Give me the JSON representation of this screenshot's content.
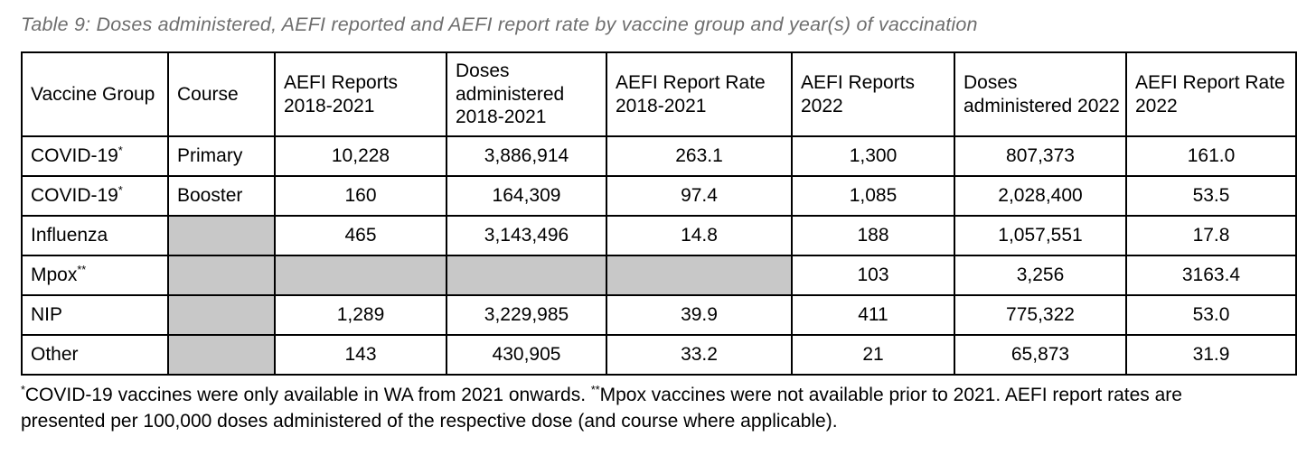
{
  "title": "Table 9: Doses administered, AEFI reported and AEFI report rate by vaccine group and year(s) of vaccination",
  "table": {
    "headers": [
      "Vaccine Group",
      "Course",
      "AEFI Reports 2018-2021",
      "Doses administered 2018-2021",
      "AEFI Report Rate 2018-2021",
      "AEFI Reports 2022",
      "Doses administered 2022",
      "AEFI Report Rate 2022"
    ],
    "rows": [
      {
        "group": "COVID-19",
        "sup": "*",
        "course": "Primary",
        "r1821": "10,228",
        "d1821": "3,886,914",
        "rate1821": "263.1",
        "r22": "1,300",
        "d22": "807,373",
        "rate22": "161.0"
      },
      {
        "group": "COVID-19",
        "sup": "*",
        "course": "Booster",
        "r1821": "160",
        "d1821": "164,309",
        "rate1821": "97.4",
        "r22": "1,085",
        "d22": "2,028,400",
        "rate22": "53.5"
      },
      {
        "group": "Influenza",
        "sup": "",
        "course": "",
        "r1821": "465",
        "d1821": "3,143,496",
        "rate1821": "14.8",
        "r22": "188",
        "d22": "1,057,551",
        "rate22": "17.8"
      },
      {
        "group": "Mpox",
        "sup": "**",
        "course": "",
        "r1821": "",
        "d1821": "",
        "rate1821": "",
        "r22": "103",
        "d22": "3,256",
        "rate22": "3163.4"
      },
      {
        "group": "NIP",
        "sup": "",
        "course": "",
        "r1821": "1,289",
        "d1821": "3,229,985",
        "rate1821": "39.9",
        "r22": "411",
        "d22": "775,322",
        "rate22": "53.0"
      },
      {
        "group": "Other",
        "sup": "",
        "course": "",
        "r1821": "143",
        "d1821": "430,905",
        "rate1821": "33.2",
        "r22": "21",
        "d22": "65,873",
        "rate22": "31.9"
      }
    ],
    "shading_color": "#c8c8c8"
  },
  "footnote": {
    "sup1": "*",
    "text1": "COVID-19 vaccines were only available in WA from 2021 onwards. ",
    "sup2": "**",
    "text2": "Mpox vaccines were not available prior to 2021. AEFI report rates are presented per 100,000 doses administered of the respective dose (and course where applicable)."
  }
}
